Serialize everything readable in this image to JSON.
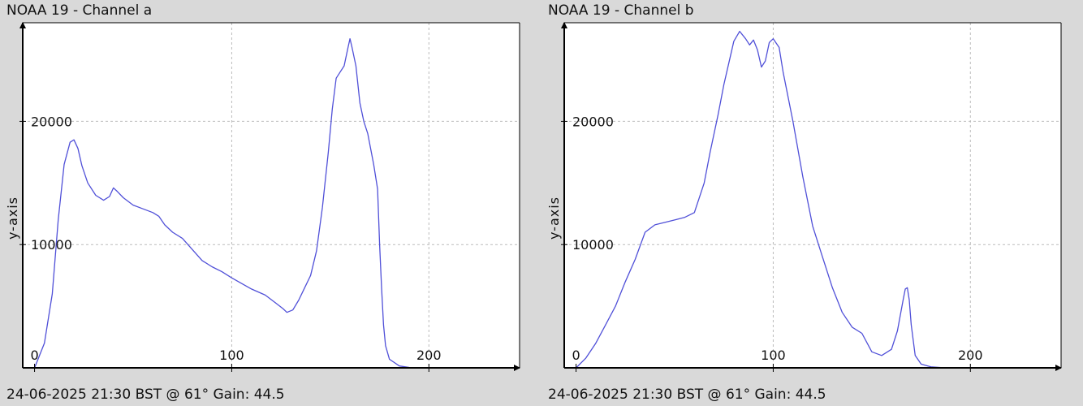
{
  "colors": {
    "background": "#d9d9d9",
    "plot_background": "#ffffff",
    "series": "#5050d8",
    "grid": "#bbbbbb",
    "axis": "#000000"
  },
  "chart_data": [
    {
      "type": "line",
      "title": "NOAA 19 - Channel a",
      "footer": "24-06-2025 21:30 BST @ 61° Gain: 44.5",
      "xlabel": "",
      "ylabel": "y-axis",
      "xlim": [
        -6,
        246
      ],
      "ylim": [
        0,
        28000
      ],
      "x_ticks": [
        0,
        100,
        200
      ],
      "y_ticks": [
        10000,
        20000
      ],
      "grid": true,
      "series": [
        {
          "x": [
            0,
            5,
            9,
            12,
            15,
            18,
            20,
            22,
            24,
            27,
            31,
            35,
            38,
            40,
            42,
            45,
            50,
            55,
            60,
            63,
            66,
            70,
            75,
            80,
            85,
            90,
            95,
            100,
            110,
            117,
            122,
            126,
            128,
            131,
            134,
            137,
            140,
            143,
            146,
            149,
            151,
            153,
            155,
            157,
            159,
            160,
            161,
            163,
            165,
            167,
            169,
            172,
            174,
            175,
            176,
            177,
            178,
            180,
            185,
            190,
            195
          ],
          "y": [
            0,
            2000,
            6000,
            12000,
            16500,
            18300,
            18500,
            17800,
            16400,
            15000,
            14000,
            13600,
            13900,
            14600,
            14300,
            13800,
            13200,
            12900,
            12600,
            12300,
            11600,
            11000,
            10500,
            9600,
            8700,
            8200,
            7800,
            7300,
            6400,
            5900,
            5300,
            4800,
            4500,
            4700,
            5500,
            6500,
            7500,
            9500,
            13000,
            17500,
            21000,
            23500,
            24000,
            24500,
            26000,
            26700,
            26000,
            24500,
            21500,
            20000,
            19000,
            16500,
            14500,
            10000,
            6500,
            3500,
            1800,
            700,
            150,
            30,
            0
          ]
        }
      ]
    },
    {
      "type": "line",
      "title": "NOAA 19 - Channel b",
      "footer": "24-06-2025 21:30 BST @ 61° Gain: 44.5",
      "xlabel": "",
      "ylabel": "y-axis",
      "xlim": [
        -6,
        246
      ],
      "ylim": [
        0,
        28000
      ],
      "x_ticks": [
        0,
        100,
        200
      ],
      "y_ticks": [
        10000,
        20000
      ],
      "grid": true,
      "series": [
        {
          "x": [
            0,
            5,
            10,
            15,
            20,
            25,
            30,
            35,
            40,
            45,
            50,
            55,
            60,
            65,
            68,
            72,
            75,
            80,
            83,
            86,
            88,
            90,
            92,
            94,
            96,
            98,
            100,
            103,
            105,
            110,
            115,
            120,
            125,
            130,
            135,
            140,
            145,
            150,
            155,
            160,
            163,
            166,
            167,
            168,
            169,
            170,
            172,
            175,
            180,
            185,
            190
          ],
          "y": [
            0,
            800,
            2000,
            3500,
            5000,
            7000,
            8800,
            11000,
            11600,
            11800,
            12000,
            12200,
            12600,
            15000,
            17500,
            20500,
            23000,
            26500,
            27300,
            26700,
            26200,
            26600,
            25800,
            24400,
            24900,
            26400,
            26700,
            26000,
            24000,
            20000,
            15500,
            11500,
            9000,
            6500,
            4500,
            3300,
            2800,
            1300,
            1000,
            1500,
            3000,
            5600,
            6400,
            6500,
            5500,
            3500,
            1000,
            300,
            80,
            20,
            0
          ]
        }
      ]
    }
  ]
}
